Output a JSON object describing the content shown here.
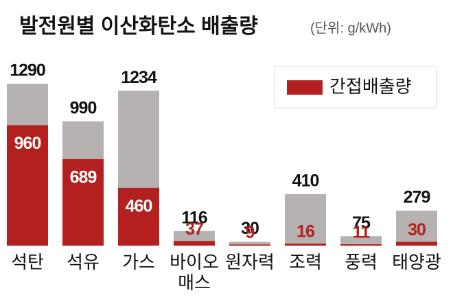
{
  "chart_data": {
    "type": "bar",
    "title": "발전원별 이산화탄소 배출량",
    "subtitle": "(단위: g/kWh)",
    "categories": [
      "석탄",
      "석유",
      "가스",
      "바이오\n매스",
      "원자력",
      "조력",
      "풍력",
      "태양광"
    ],
    "series": [
      {
        "color": "#b5b2b1",
        "values": [
          1290,
          990,
          1234,
          116,
          30,
          410,
          75,
          279
        ]
      },
      {
        "name": "간접배출량",
        "color": "#b3201f",
        "values": [
          960,
          689,
          460,
          37,
          9,
          16,
          11,
          30
        ]
      }
    ],
    "legend": "upper right"
  }
}
